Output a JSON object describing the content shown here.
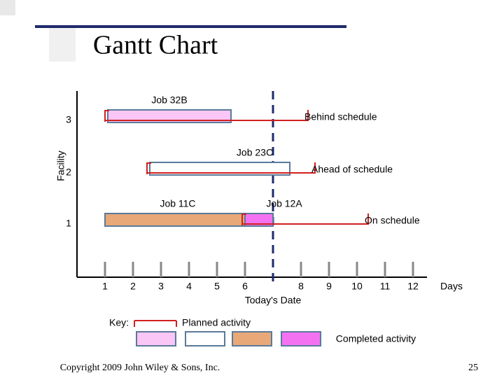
{
  "title": "Gantt Chart",
  "footer": "Copyright 2009 John Wiley & Sons, Inc.",
  "page_number": "25",
  "chart_data": {
    "type": "gantt",
    "y_label": "Facility",
    "x_label": "Days",
    "xlim": [
      0,
      13
    ],
    "xticks": [
      1,
      2,
      3,
      4,
      5,
      6,
      8,
      9,
      10,
      11,
      12
    ],
    "today": {
      "value": 7,
      "label": "Today's Date"
    },
    "rows": [
      "3",
      "2",
      "1"
    ],
    "jobs": [
      {
        "name": "Job 32B",
        "row": 0,
        "planned": [
          1,
          8.25
        ],
        "completed": [
          1.1,
          5.5
        ],
        "color": "#f9c6f5",
        "status": "Behind schedule"
      },
      {
        "name": "Job 23C",
        "row": 1,
        "planned": [
          2.5,
          8.5
        ],
        "completed": [
          2.6,
          7.6
        ],
        "color": "#ffffff",
        "status": "Ahead of schedule"
      },
      {
        "name": "Job 11C",
        "row": 2,
        "completed": [
          1,
          6.2
        ],
        "color": "#e8a878"
      },
      {
        "name": "Job 12A",
        "row": 2,
        "planned": [
          5.9,
          10.4
        ],
        "completed": [
          6,
          7
        ],
        "color": "#f472f2",
        "status": "On schedule"
      }
    ],
    "key": {
      "title": "Key:",
      "planned": "Planned activity",
      "completed": "Completed activity"
    }
  }
}
